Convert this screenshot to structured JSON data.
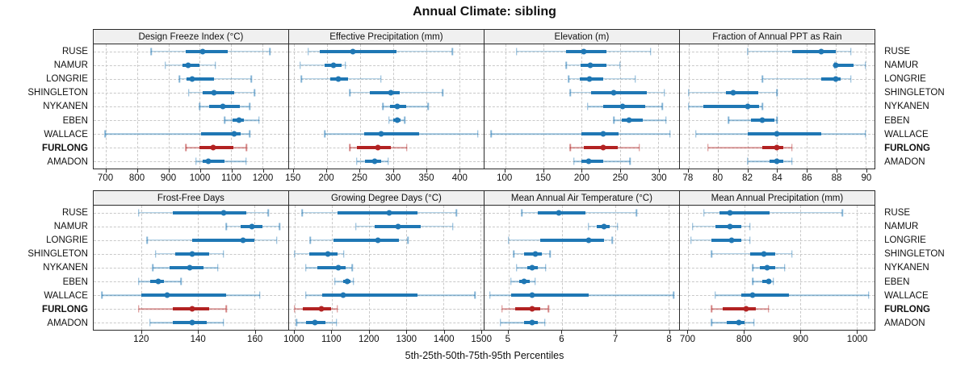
{
  "title": "Annual Climate: sibling",
  "xlabel": "5th-25th-50th-75th-95th Percentiles",
  "stations": [
    "RUSE",
    "NAMUR",
    "LONGRIE",
    "SHINGLETON",
    "NYKANEN",
    "EBEN",
    "WALLACE",
    "FURLONG",
    "AMADON"
  ],
  "highlight_station": "FURLONG",
  "colors": {
    "default_series": "#1f77b4",
    "highlight_series": "#b22222",
    "strip_bg": "#f0f0f0",
    "panel_border": "#2b2b2b",
    "grid": "#c9c9c9"
  },
  "percentile_levels": [
    5,
    25,
    50,
    75,
    95
  ],
  "chart_data": [
    {
      "type": "scatter",
      "variant": "percentile-interval",
      "title": "Design Freeze Index (°C)",
      "xlim": [
        660,
        1283
      ],
      "ticks": [
        700,
        800,
        900,
        1000,
        1100,
        1200
      ],
      "series": [
        {
          "name": "RUSE",
          "percentiles": [
            845,
            955,
            1008,
            1090,
            1225
          ]
        },
        {
          "name": "NAMUR",
          "percentiles": [
            890,
            945,
            962,
            1000,
            1050
          ]
        },
        {
          "name": "LONGRIE",
          "percentiles": [
            935,
            958,
            975,
            1045,
            1165
          ]
        },
        {
          "name": "SHINGLETON",
          "percentiles": [
            965,
            1008,
            1045,
            1110,
            1175
          ]
        },
        {
          "name": "NYKANEN",
          "percentiles": [
            1000,
            1030,
            1075,
            1128,
            1160
          ]
        },
        {
          "name": "EBEN",
          "percentiles": [
            1080,
            1105,
            1125,
            1142,
            1190
          ]
        },
        {
          "name": "WALLACE",
          "percentiles": [
            697,
            1005,
            1110,
            1132,
            1160
          ]
        },
        {
          "name": "FURLONG",
          "percentiles": [
            955,
            1000,
            1042,
            1108,
            1150
          ]
        },
        {
          "name": "AMADON",
          "percentiles": [
            988,
            1010,
            1028,
            1078,
            1148
          ]
        }
      ]
    },
    {
      "type": "scatter",
      "variant": "percentile-interval",
      "title": "Effective Precipitation (mm)",
      "xlim": [
        143,
        437
      ],
      "ticks": [
        150,
        200,
        250,
        300,
        350,
        400
      ],
      "series": [
        {
          "name": "RUSE",
          "percentiles": [
            172,
            190,
            240,
            305,
            390
          ]
        },
        {
          "name": "NAMUR",
          "percentiles": [
            160,
            197,
            210,
            222,
            228
          ]
        },
        {
          "name": "LONGRIE",
          "percentiles": [
            162,
            205,
            218,
            232,
            282
          ]
        },
        {
          "name": "SHINGLETON",
          "percentiles": [
            235,
            265,
            297,
            310,
            375
          ]
        },
        {
          "name": "NYKANEN",
          "percentiles": [
            285,
            295,
            307,
            320,
            353
          ]
        },
        {
          "name": "EBEN",
          "percentiles": [
            294,
            300,
            306,
            312,
            318
          ]
        },
        {
          "name": "WALLACE",
          "percentiles": [
            197,
            257,
            282,
            340,
            428
          ]
        },
        {
          "name": "FURLONG",
          "percentiles": [
            235,
            245,
            277,
            297,
            321
          ]
        },
        {
          "name": "AMADON",
          "percentiles": [
            245,
            258,
            272,
            282,
            293
          ]
        }
      ]
    },
    {
      "type": "scatter",
      "variant": "percentile-interval",
      "title": "Elevation (m)",
      "xlim": [
        73,
        327
      ],
      "ticks": [
        100,
        150,
        200,
        250,
        300
      ],
      "series": [
        {
          "name": "RUSE",
          "percentiles": [
            115,
            180,
            203,
            232,
            290
          ]
        },
        {
          "name": "NAMUR",
          "percentiles": [
            180,
            198,
            211,
            232,
            250
          ]
        },
        {
          "name": "LONGRIE",
          "percentiles": [
            183,
            197,
            210,
            228,
            270
          ]
        },
        {
          "name": "SHINGLETON",
          "percentiles": [
            185,
            212,
            242,
            285,
            308
          ]
        },
        {
          "name": "NYKANEN",
          "percentiles": [
            208,
            228,
            253,
            283,
            305
          ]
        },
        {
          "name": "EBEN",
          "percentiles": [
            242,
            252,
            262,
            280,
            310
          ]
        },
        {
          "name": "WALLACE",
          "percentiles": [
            82,
            200,
            228,
            248,
            315
          ]
        },
        {
          "name": "FURLONG",
          "percentiles": [
            185,
            203,
            228,
            247,
            275
          ]
        },
        {
          "name": "AMADON",
          "percentiles": [
            190,
            200,
            209,
            228,
            263
          ]
        }
      ]
    },
    {
      "type": "scatter",
      "variant": "percentile-interval",
      "title": "Fraction of Annual PPT as Rain",
      "xlim": [
        77.4,
        90.6
      ],
      "ticks": [
        78,
        80,
        82,
        84,
        86,
        88,
        90
      ],
      "series": [
        {
          "name": "RUSE",
          "percentiles": [
            82,
            85,
            87,
            88,
            89
          ]
        },
        {
          "name": "NAMUR",
          "percentiles": [
            87.9,
            88,
            88,
            89.2,
            90
          ]
        },
        {
          "name": "LONGRIE",
          "percentiles": [
            83,
            87,
            88,
            88.3,
            89
          ]
        },
        {
          "name": "SHINGLETON",
          "percentiles": [
            78,
            80.5,
            81,
            82.7,
            84
          ]
        },
        {
          "name": "NYKANEN",
          "percentiles": [
            78,
            79,
            82,
            82.8,
            83
          ]
        },
        {
          "name": "EBEN",
          "percentiles": [
            80.7,
            82.2,
            83,
            83.8,
            84
          ]
        },
        {
          "name": "WALLACE",
          "percentiles": [
            78.5,
            82,
            84,
            87,
            90
          ]
        },
        {
          "name": "FURLONG",
          "percentiles": [
            79.3,
            83,
            84,
            84.4,
            85
          ]
        },
        {
          "name": "AMADON",
          "percentiles": [
            82,
            83.5,
            84,
            84.4,
            85
          ]
        }
      ]
    },
    {
      "type": "scatter",
      "variant": "percentile-interval",
      "title": "Frost-Free Days",
      "xlim": [
        103,
        172
      ],
      "ticks": [
        120,
        140,
        160
      ],
      "series": [
        {
          "name": "RUSE",
          "percentiles": [
            119,
            131,
            149,
            157,
            165
          ]
        },
        {
          "name": "NAMUR",
          "percentiles": [
            150,
            155,
            159,
            163,
            169
          ]
        },
        {
          "name": "LONGRIE",
          "percentiles": [
            122,
            138,
            156,
            160,
            168
          ]
        },
        {
          "name": "SHINGLETON",
          "percentiles": [
            125,
            132,
            138,
            144,
            149
          ]
        },
        {
          "name": "NYKANEN",
          "percentiles": [
            124,
            130,
            137,
            142,
            147
          ]
        },
        {
          "name": "EBEN",
          "percentiles": [
            119,
            123,
            126,
            128,
            134
          ]
        },
        {
          "name": "WALLACE",
          "percentiles": [
            106,
            120,
            129,
            150,
            162
          ]
        },
        {
          "name": "FURLONG",
          "percentiles": [
            119,
            131,
            138,
            144,
            150
          ]
        },
        {
          "name": "AMADON",
          "percentiles": [
            123,
            131,
            138,
            143,
            149
          ]
        }
      ]
    },
    {
      "type": "scatter",
      "variant": "percentile-interval",
      "title": "Growing Degree Days (°C)",
      "xlim": [
        985,
        1508
      ],
      "ticks": [
        1000,
        1100,
        1200,
        1300,
        1400,
        1500
      ],
      "series": [
        {
          "name": "RUSE",
          "percentiles": [
            1020,
            1115,
            1255,
            1330,
            1435
          ]
        },
        {
          "name": "NAMUR",
          "percentiles": [
            1165,
            1215,
            1278,
            1340,
            1425
          ]
        },
        {
          "name": "LONGRIE",
          "percentiles": [
            1042,
            1105,
            1225,
            1280,
            1305
          ]
        },
        {
          "name": "SHINGLETON",
          "percentiles": [
            1000,
            1040,
            1090,
            1115,
            1132
          ]
        },
        {
          "name": "NYKANEN",
          "percentiles": [
            1030,
            1062,
            1118,
            1138,
            1155
          ]
        },
        {
          "name": "EBEN",
          "percentiles": [
            1108,
            1130,
            1142,
            1150,
            1158
          ]
        },
        {
          "name": "WALLACE",
          "percentiles": [
            1030,
            1075,
            1130,
            1330,
            1485
          ]
        },
        {
          "name": "FURLONG",
          "percentiles": [
            1000,
            1022,
            1073,
            1098,
            1115
          ]
        },
        {
          "name": "AMADON",
          "percentiles": [
            1005,
            1030,
            1055,
            1082,
            1113
          ]
        }
      ]
    },
    {
      "type": "scatter",
      "variant": "percentile-interval",
      "title": "Mean Annual Air Temperature (°C)",
      "xlim": [
        4.55,
        8.2
      ],
      "ticks": [
        5,
        6,
        7,
        8
      ],
      "series": [
        {
          "name": "RUSE",
          "percentiles": [
            5.25,
            5.55,
            5.95,
            6.45,
            7.4
          ]
        },
        {
          "name": "NAMUR",
          "percentiles": [
            6.5,
            6.65,
            6.8,
            6.9,
            7.05
          ]
        },
        {
          "name": "LONGRIE",
          "percentiles": [
            5.0,
            5.6,
            6.5,
            6.8,
            6.95
          ]
        },
        {
          "name": "SHINGLETON",
          "percentiles": [
            5.1,
            5.3,
            5.5,
            5.62,
            5.78
          ]
        },
        {
          "name": "NYKANEN",
          "percentiles": [
            5.15,
            5.35,
            5.45,
            5.55,
            5.7
          ]
        },
        {
          "name": "EBEN",
          "percentiles": [
            5.05,
            5.2,
            5.3,
            5.4,
            5.5
          ]
        },
        {
          "name": "WALLACE",
          "percentiles": [
            4.65,
            5.05,
            5.45,
            6.5,
            8.1
          ]
        },
        {
          "name": "FURLONG",
          "percentiles": [
            4.88,
            5.12,
            5.45,
            5.6,
            5.75
          ]
        },
        {
          "name": "AMADON",
          "percentiles": [
            4.85,
            5.3,
            5.45,
            5.55,
            5.68
          ]
        }
      ]
    },
    {
      "type": "scatter",
      "variant": "percentile-interval",
      "title": "Mean Annual Precipitation (mm)",
      "xlim": [
        685,
        1032
      ],
      "ticks": [
        700,
        800,
        900,
        1000
      ],
      "series": [
        {
          "name": "RUSE",
          "percentiles": [
            728,
            755,
            775,
            845,
            975
          ]
        },
        {
          "name": "NAMUR",
          "percentiles": [
            708,
            748,
            775,
            795,
            810
          ]
        },
        {
          "name": "LONGRIE",
          "percentiles": [
            705,
            742,
            778,
            795,
            810
          ]
        },
        {
          "name": "SHINGLETON",
          "percentiles": [
            742,
            810,
            835,
            855,
            885
          ]
        },
        {
          "name": "NYKANEN",
          "percentiles": [
            815,
            828,
            840,
            855,
            872
          ]
        },
        {
          "name": "EBEN",
          "percentiles": [
            815,
            832,
            843,
            848,
            852
          ]
        },
        {
          "name": "WALLACE",
          "percentiles": [
            748,
            795,
            815,
            880,
            1022
          ]
        },
        {
          "name": "FURLONG",
          "percentiles": [
            742,
            762,
            803,
            820,
            843
          ]
        },
        {
          "name": "AMADON",
          "percentiles": [
            742,
            768,
            790,
            800,
            817
          ]
        }
      ]
    }
  ]
}
